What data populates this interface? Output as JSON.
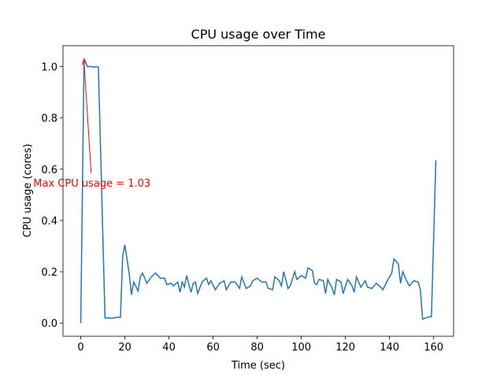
{
  "chart_data": {
    "type": "line",
    "title": "CPU usage over Time",
    "xlabel": "Time (sec)",
    "ylabel": "CPU usage (cores)",
    "annotation": "Max CPU usage = 1.03",
    "annotation_color": "#ff0000",
    "x": [
      0,
      1.5,
      3,
      5,
      6,
      7,
      8,
      11,
      13,
      14,
      16,
      18,
      19,
      20,
      22,
      23,
      24,
      26,
      27,
      28,
      30,
      32,
      34,
      36,
      38,
      39,
      41,
      42,
      44,
      45,
      46,
      47,
      48,
      50,
      51,
      52,
      53,
      55,
      57,
      58,
      59,
      61,
      63,
      65,
      66,
      68,
      70,
      72,
      73,
      75,
      77,
      78,
      80,
      82,
      84,
      85,
      87,
      88,
      90,
      91,
      92,
      94,
      95,
      97,
      98,
      100,
      102,
      103,
      105,
      106,
      107,
      108,
      110,
      111,
      112,
      114,
      115,
      116,
      118,
      119,
      121,
      123,
      124,
      125,
      127,
      129,
      130,
      132,
      134,
      136,
      137,
      139,
      141,
      142,
      144,
      145,
      146,
      148,
      149,
      151,
      153,
      154,
      155,
      157,
      159,
      161
    ],
    "series": [
      {
        "name": "CPU usage",
        "color": "#1f77b4",
        "values": [
          0,
          1.03,
          1.0,
          1.0,
          0.997,
          1.0,
          0.998,
          0.02,
          0.02,
          0.018,
          0.022,
          0.022,
          0.26,
          0.305,
          0.19,
          0.11,
          0.16,
          0.125,
          0.18,
          0.195,
          0.155,
          0.18,
          0.195,
          0.175,
          0.175,
          0.15,
          0.155,
          0.145,
          0.16,
          0.12,
          0.16,
          0.14,
          0.185,
          0.12,
          0.155,
          0.16,
          0.115,
          0.16,
          0.175,
          0.15,
          0.165,
          0.13,
          0.155,
          0.165,
          0.13,
          0.16,
          0.16,
          0.135,
          0.18,
          0.135,
          0.145,
          0.165,
          0.175,
          0.16,
          0.16,
          0.135,
          0.13,
          0.18,
          0.165,
          0.145,
          0.2,
          0.135,
          0.145,
          0.2,
          0.17,
          0.185,
          0.175,
          0.215,
          0.205,
          0.155,
          0.15,
          0.17,
          0.165,
          0.115,
          0.17,
          0.135,
          0.11,
          0.17,
          0.16,
          0.115,
          0.17,
          0.145,
          0.12,
          0.18,
          0.14,
          0.165,
          0.14,
          0.135,
          0.155,
          0.14,
          0.13,
          0.165,
          0.195,
          0.25,
          0.23,
          0.155,
          0.2,
          0.16,
          0.145,
          0.165,
          0.16,
          0.13,
          0.015,
          0.022,
          0.025,
          0.635
        ]
      }
    ],
    "xlim": [
      -8.05,
      169.05
    ],
    "xticks": [
      0,
      20,
      40,
      60,
      80,
      100,
      120,
      140,
      160
    ],
    "ylim": [
      -0.0515,
      1.0815
    ],
    "yticks": [
      {
        "value": 0,
        "label": "0.0"
      },
      {
        "value": 0.2,
        "label": "0.2"
      },
      {
        "value": 0.4,
        "label": "0.4"
      },
      {
        "value": 0.6,
        "label": "0.6"
      },
      {
        "value": 0.8,
        "label": "0.8"
      },
      {
        "value": 1.0,
        "label": "1.0"
      }
    ],
    "grid": false
  }
}
